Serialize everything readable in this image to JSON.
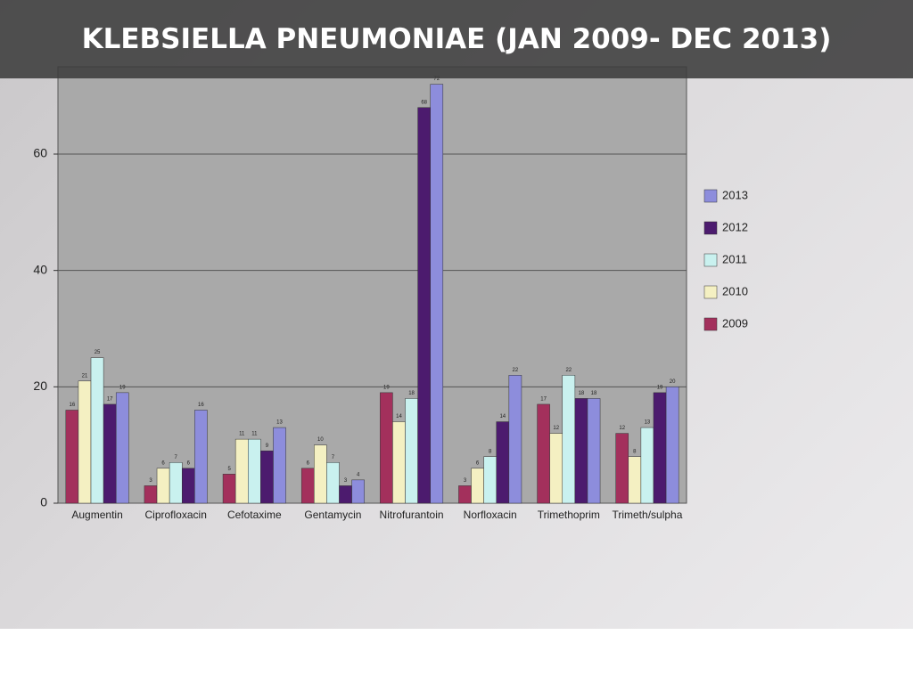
{
  "chart_data": {
    "type": "bar",
    "title": "KLEBSIELLA PNEUMONIAE (JAN 2009- DEC 2013)",
    "categories": [
      "Augmentin",
      "Ciprofloxacin",
      "Cefotaxime",
      "Gentamycin",
      "Nitrofurantoin",
      "Norfloxacin",
      "Trimethoprim",
      "Trimeth/sulpha"
    ],
    "series": [
      {
        "name": "2009",
        "color": "#a3305c",
        "values": [
          16,
          3,
          5,
          6,
          19,
          3,
          17,
          12
        ]
      },
      {
        "name": "2010",
        "color": "#f4f0c2",
        "values": [
          21,
          6,
          11,
          10,
          14,
          6,
          12,
          8
        ]
      },
      {
        "name": "2011",
        "color": "#c9f1ef",
        "values": [
          25,
          7,
          11,
          7,
          18,
          8,
          22,
          13
        ]
      },
      {
        "name": "2012",
        "color": "#4c1b6e",
        "values": [
          17,
          6,
          9,
          3,
          68,
          14,
          18,
          19
        ]
      },
      {
        "name": "2013",
        "color": "#8d8ddc",
        "values": [
          19,
          16,
          13,
          4,
          72,
          22,
          18,
          20
        ]
      }
    ],
    "ylim": [
      0,
      75
    ],
    "yticks": [
      0,
      20,
      40,
      60
    ],
    "grid": true,
    "legend": "right"
  }
}
